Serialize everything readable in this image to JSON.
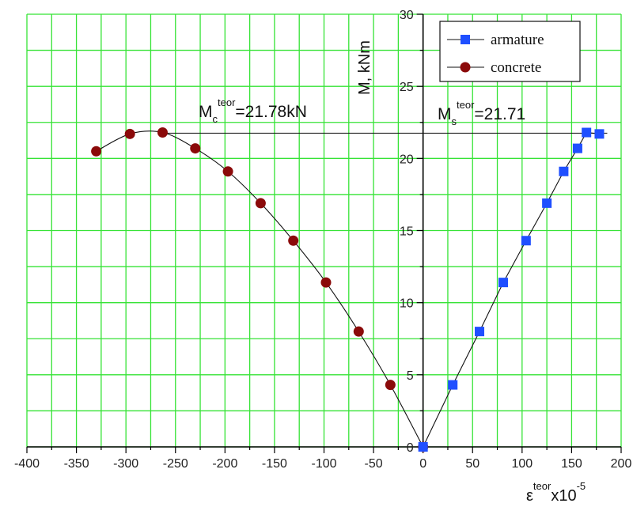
{
  "chart_data": {
    "type": "scatter",
    "title": "",
    "xlabel": {
      "base": "ε",
      "sup": "teor",
      "rest": "x10",
      "exp": "-5"
    },
    "ylabel": "M, kNm",
    "xlim": [
      -400,
      200
    ],
    "ylim": [
      0,
      30
    ],
    "x_ticks": [
      -400,
      -350,
      -300,
      -250,
      -200,
      -150,
      -100,
      -50,
      0,
      50,
      100,
      150,
      200
    ],
    "y_ticks": [
      0,
      5,
      10,
      15,
      20,
      25,
      30
    ],
    "grid": true,
    "legend_position": "top-right",
    "series": [
      {
        "name": "armature",
        "marker": "square",
        "color": "#1f4fff",
        "x": [
          0,
          30,
          57,
          81,
          104,
          125,
          142,
          156,
          165,
          178
        ],
        "y": [
          0,
          4.3,
          8.0,
          11.4,
          14.3,
          16.9,
          19.1,
          20.7,
          21.8,
          21.7
        ]
      },
      {
        "name": "concrete",
        "marker": "circle",
        "color": "#8b0a0a",
        "x": [
          0,
          -33,
          -65,
          -98,
          -131,
          -164,
          -197,
          -230,
          -263,
          -296,
          -330
        ],
        "y": [
          0,
          4.3,
          8.0,
          11.4,
          14.3,
          16.9,
          19.1,
          20.7,
          21.8,
          21.7,
          20.5
        ]
      }
    ],
    "annotations": [
      {
        "base": "M",
        "sub": "c",
        "sup": "teor",
        "text": "=21.78kN"
      },
      {
        "base": "M",
        "sub": "s",
        "sup": "teor",
        "text": "=21.71"
      }
    ],
    "reference_value": 21.75
  },
  "colors": {
    "grid": "#35e335",
    "axis": "#000000",
    "line": "#111111"
  }
}
